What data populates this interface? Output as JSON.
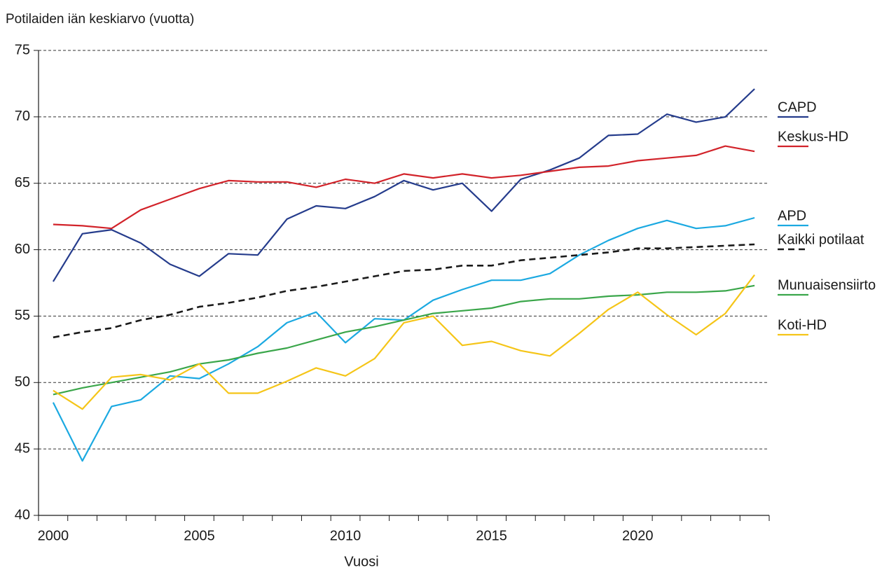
{
  "chart_data": {
    "type": "line",
    "y_axis_label": "Potilaiden iän keskiarvo (vuotta)",
    "x_axis_label": "Vuosi",
    "categories": [
      "2000",
      null,
      null,
      null,
      null,
      "2005",
      null,
      null,
      null,
      null,
      "2010",
      null,
      null,
      null,
      null,
      "2015",
      null,
      null,
      null,
      null,
      "2020",
      null,
      null,
      null,
      null
    ],
    "ylim": [
      40,
      75
    ],
    "yticks": [
      40,
      45,
      50,
      55,
      60,
      65,
      70,
      75
    ],
    "grid": true,
    "grid_style": "dashed",
    "series": [
      {
        "name": "CAPD",
        "color": "#253c8c",
        "style": "solid",
        "values": [
          57.6,
          61.2,
          61.5,
          60.5,
          58.9,
          58.0,
          59.7,
          59.6,
          62.3,
          63.3,
          63.1,
          64.0,
          65.2,
          64.5,
          65.0,
          62.9,
          65.3,
          66.0,
          66.9,
          68.6,
          68.7,
          70.2,
          69.6,
          70.0,
          72.1
        ]
      },
      {
        "name": "Keskus-HD",
        "color": "#d2232a",
        "style": "solid",
        "values": [
          61.9,
          61.8,
          61.6,
          63.0,
          63.8,
          64.6,
          65.2,
          65.1,
          65.1,
          64.7,
          65.3,
          65.0,
          65.7,
          65.4,
          65.7,
          65.4,
          65.6,
          65.9,
          66.2,
          66.3,
          66.7,
          66.9,
          67.1,
          67.8,
          67.4
        ]
      },
      {
        "name": "APD",
        "color": "#1ba9e1",
        "style": "solid",
        "values": [
          48.5,
          44.1,
          48.2,
          48.7,
          50.5,
          50.3,
          51.4,
          52.7,
          54.5,
          55.3,
          53.0,
          54.8,
          54.7,
          56.2,
          57.0,
          57.7,
          57.7,
          58.2,
          59.6,
          60.7,
          61.6,
          62.2,
          61.6,
          61.8,
          62.4
        ]
      },
      {
        "name": "Kaikki potilaat",
        "color": "#1a1a1a",
        "style": "dashed",
        "values": [
          53.4,
          53.8,
          54.1,
          54.7,
          55.1,
          55.7,
          56.0,
          56.4,
          56.9,
          57.2,
          57.6,
          58.0,
          58.4,
          58.5,
          58.8,
          58.8,
          59.2,
          59.4,
          59.6,
          59.8,
          60.1,
          60.1,
          60.2,
          60.3,
          60.4
        ]
      },
      {
        "name": "Munuaisensiirto",
        "color": "#3aa64a",
        "style": "solid",
        "values": [
          49.1,
          49.6,
          50.0,
          50.4,
          50.8,
          51.4,
          51.7,
          52.2,
          52.6,
          53.2,
          53.8,
          54.2,
          54.7,
          55.2,
          55.4,
          55.6,
          56.1,
          56.3,
          56.3,
          56.5,
          56.6,
          56.8,
          56.8,
          56.9,
          57.3
        ]
      },
      {
        "name": "Koti-HD",
        "color": "#f5c518",
        "style": "solid",
        "values": [
          49.4,
          48.0,
          50.4,
          50.6,
          50.2,
          51.4,
          49.2,
          49.2,
          50.1,
          51.1,
          50.5,
          51.8,
          54.5,
          55.0,
          52.8,
          53.1,
          52.4,
          52.0,
          53.7,
          55.5,
          56.8,
          55.1,
          53.6,
          55.2,
          58.1
        ]
      }
    ]
  }
}
